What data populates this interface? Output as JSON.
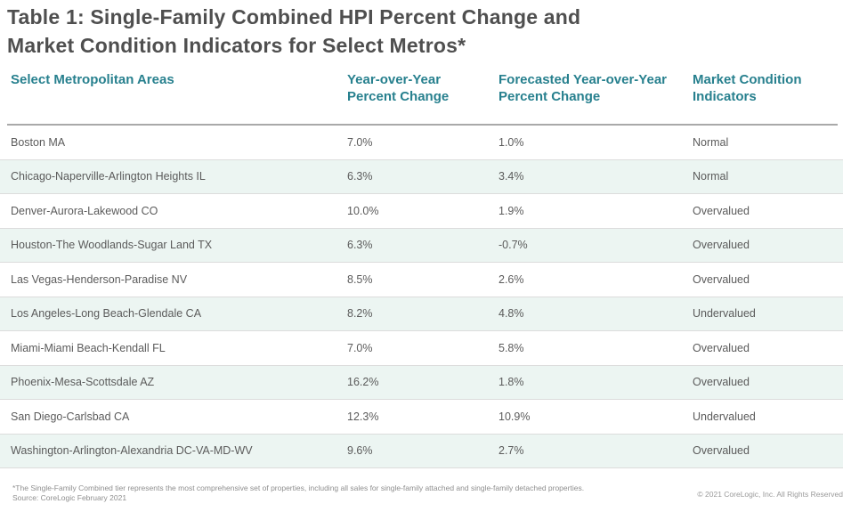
{
  "title": {
    "line1": "Table 1: Single-Family Combined HPI Percent Change and",
    "line2": "Market Condition Indicators for Select Metros*"
  },
  "colors": {
    "accent": "#27808e",
    "stripe": "#ecf5f2",
    "title_text": "#4f4f4f",
    "body_text": "#5b5b5b"
  },
  "chart_data": {
    "type": "table",
    "title": "Table 1: Single-Family Combined HPI Percent Change and Market Condition Indicators for Select Metros*",
    "columns": [
      "Select Metropolitan Areas",
      "Year-over-Year Percent Change",
      "Forecasted Year-over-Year Percent Change",
      "Market Condition Indicators"
    ],
    "rows": [
      [
        "Boston MA",
        "7.0%",
        "1.0%",
        "Normal"
      ],
      [
        "Chicago-Naperville-Arlington Heights IL",
        "6.3%",
        "3.4%",
        "Normal"
      ],
      [
        "Denver-Aurora-Lakewood CO",
        "10.0%",
        "1.9%",
        "Overvalued"
      ],
      [
        "Houston-The Woodlands-Sugar Land TX",
        "6.3%",
        "-0.7%",
        "Overvalued"
      ],
      [
        "Las Vegas-Henderson-Paradise NV",
        "8.5%",
        "2.6%",
        "Overvalued"
      ],
      [
        "Los Angeles-Long Beach-Glendale CA",
        "8.2%",
        "4.8%",
        "Undervalued"
      ],
      [
        "Miami-Miami Beach-Kendall FL",
        "7.0%",
        "5.8%",
        "Overvalued"
      ],
      [
        "Phoenix-Mesa-Scottsdale AZ",
        "16.2%",
        "1.8%",
        "Overvalued"
      ],
      [
        "San Diego-Carlsbad CA",
        "12.3%",
        "10.9%",
        "Undervalued"
      ],
      [
        "Washington-Arlington-Alexandria DC-VA-MD-WV",
        "9.6%",
        "2.7%",
        "Overvalued"
      ]
    ]
  },
  "footer": {
    "footnote": "*The Single-Family Combined tier represents the most comprehensive set of properties, including all sales for single-family attached and single-family detached properties.",
    "source": "Source: CoreLogic February 2021",
    "copyright": "© 2021 CoreLogic, Inc. All Rights Reserved"
  }
}
